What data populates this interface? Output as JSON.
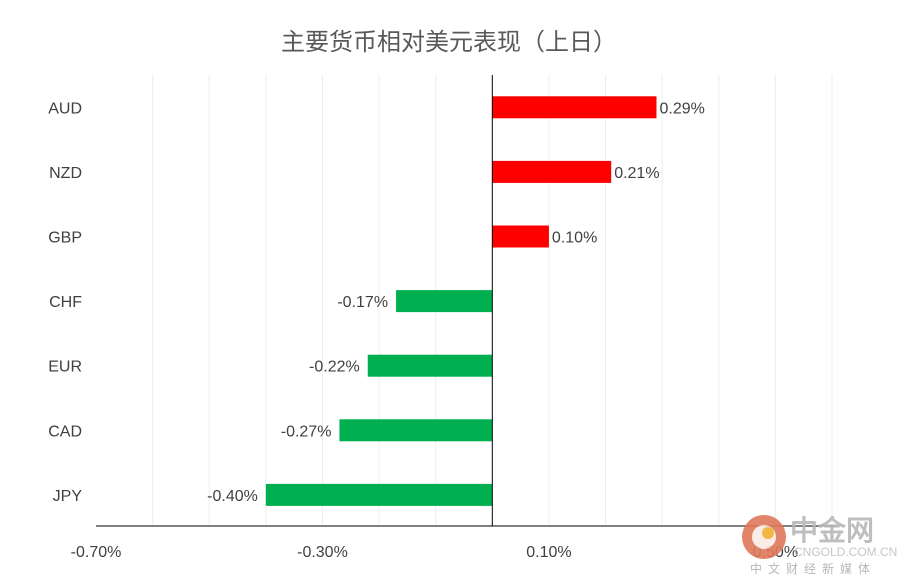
{
  "chart_data": {
    "type": "bar",
    "orientation": "horizontal",
    "title": "主要货币相对美元表现（上日）",
    "categories": [
      "AUD",
      "NZD",
      "GBP",
      "CHF",
      "EUR",
      "CAD",
      "JPY"
    ],
    "values": [
      0.29,
      0.21,
      0.1,
      -0.17,
      -0.22,
      -0.27,
      -0.4
    ],
    "data_labels": [
      "0.29%",
      "0.21%",
      "0.10%",
      "-0.17%",
      "-0.22%",
      "-0.27%",
      "-0.40%"
    ],
    "xlim": [
      -0.7,
      0.6
    ],
    "x_ticks": [
      -0.7,
      -0.3,
      0.1,
      0.5
    ],
    "x_tick_labels": [
      "-0.70%",
      "-0.30%",
      "0.10%",
      "0.50%"
    ],
    "grid": true,
    "legend": "none",
    "colors": {
      "positive": "#ff0000",
      "negative": "#00b050",
      "grid": "#eeeeee",
      "axis": "#000000"
    }
  },
  "watermark": {
    "name": "中金网",
    "url": "CNGOLD.COM.CN",
    "tagline": "中文财经新媒体",
    "logo_color": "#e0785a"
  }
}
